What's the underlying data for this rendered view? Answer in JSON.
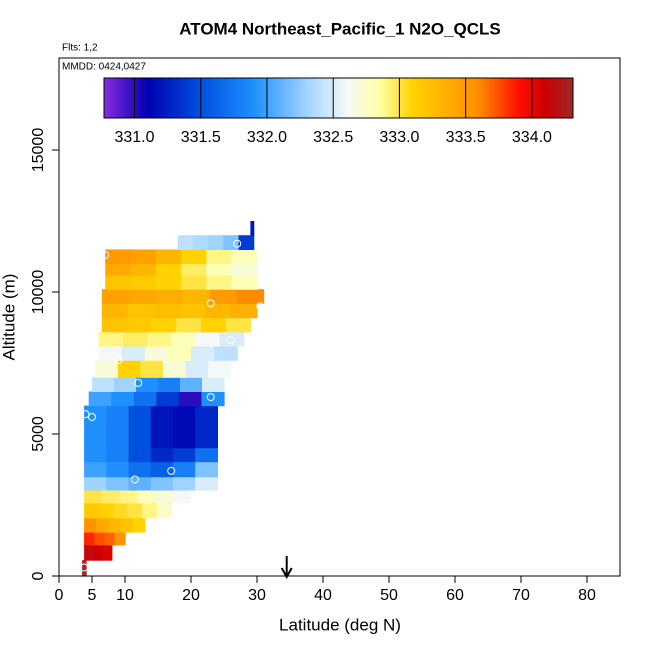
{
  "chart_data": {
    "type": "curtain",
    "title": "ATOM4 Northeast_Pacific_1 N2O_QCLS",
    "subtitle": "Flts: 1,2",
    "annotation": "MMDD: 0424,0427",
    "x_label": "Latitude (deg N)",
    "y_label": "Altitude (m)",
    "xlim": [
      0,
      85
    ],
    "xticks": [
      0,
      5,
      10,
      20,
      30,
      40,
      50,
      60,
      70,
      80
    ],
    "ylim": [
      0,
      18240
    ],
    "yticks": [
      0,
      5000,
      10000,
      15000
    ],
    "clim": [
      330.77,
      334.31
    ],
    "cticks": [
      {
        "value": 331,
        "label": "331.0"
      },
      {
        "value": 331.5,
        "label": "331.5"
      },
      {
        "value": 332,
        "label": "332.0"
      },
      {
        "value": 332.5,
        "label": "332.5"
      },
      {
        "value": 333,
        "label": "333.0"
      },
      {
        "value": 333.5,
        "label": "333.5"
      },
      {
        "value": 334,
        "label": "334.0"
      }
    ],
    "colormap": [
      {
        "value": 330.77,
        "color": "#8a2be2"
      },
      {
        "value": 331.1,
        "color": "#0000b0"
      },
      {
        "value": 331.5,
        "color": "#0050e0"
      },
      {
        "value": 331.9,
        "color": "#1e90ff"
      },
      {
        "value": 332.3,
        "color": "#a0d4ff"
      },
      {
        "value": 332.6,
        "color": "#f4f8f8"
      },
      {
        "value": 332.85,
        "color": "#ffffa8"
      },
      {
        "value": 333.1,
        "color": "#ffd200"
      },
      {
        "value": 333.6,
        "color": "#ff8c00"
      },
      {
        "value": 333.9,
        "color": "#ff1000"
      },
      {
        "value": 334.1,
        "color": "#cc0000"
      },
      {
        "value": 334.31,
        "color": "#a0282a"
      }
    ],
    "rows": [
      {
        "alt": [
          0,
          560
        ],
        "lat": [
          3.5,
          4.1
        ],
        "values": [
          334.3
        ]
      },
      {
        "alt": [
          560,
          1100
        ],
        "lat": [
          3.8,
          8
        ],
        "values": [
          334.15,
          334.1,
          334.05
        ]
      },
      {
        "alt": [
          1100,
          1550
        ],
        "lat": [
          3.8,
          10
        ],
        "values": [
          333.85,
          333.75,
          333.7,
          333.55
        ]
      },
      {
        "alt": [
          1550,
          2050
        ],
        "lat": [
          3.8,
          13
        ],
        "values": [
          333.55,
          333.4,
          333.3,
          333.2,
          333.1
        ]
      },
      {
        "alt": [
          2050,
          2580
        ],
        "lat": [
          3.8,
          17
        ],
        "values": [
          333.15,
          333.1,
          333.05,
          333.0,
          332.9,
          332.75
        ]
      },
      {
        "alt": [
          2580,
          3030
        ],
        "lat": [
          3.8,
          20
        ],
        "values": [
          333.0,
          332.95,
          332.9,
          332.8,
          332.7,
          332.6
        ]
      },
      {
        "alt": [
          3030,
          3500
        ],
        "lat": [
          3.8,
          24
        ],
        "values": [
          332.3,
          332.2,
          332.1,
          332.2,
          332.3,
          332.5
        ]
      },
      {
        "alt": [
          3500,
          4030
        ],
        "lat": [
          3.8,
          24
        ],
        "values": [
          332.0,
          331.9,
          331.7,
          331.6,
          331.8,
          332.2
        ]
      },
      {
        "alt": [
          4030,
          4520
        ],
        "lat": [
          3.8,
          24
        ],
        "values": [
          331.9,
          331.8,
          331.5,
          331.3,
          331.4,
          331.7
        ]
      },
      {
        "alt": [
          4520,
          6000
        ],
        "lat": [
          3.8,
          24
        ],
        "values": [
          331.9,
          331.8,
          331.5,
          331.2,
          331.15,
          331.3
        ]
      },
      {
        "alt": [
          6000,
          6500
        ],
        "lat": [
          4.5,
          25
        ],
        "values": [
          332.0,
          331.9,
          331.7,
          331.4,
          331.0,
          331.9
        ]
      },
      {
        "alt": [
          6500,
          7000
        ],
        "lat": [
          5,
          25
        ],
        "values": [
          332.4,
          332.3,
          331.9,
          331.8,
          332.1,
          332.5
        ]
      },
      {
        "alt": [
          7000,
          7600
        ],
        "lat": [
          5.5,
          26
        ],
        "values": [
          332.7,
          333.1,
          333.0,
          332.7,
          332.5,
          332.6
        ]
      },
      {
        "alt": [
          7600,
          8100
        ],
        "lat": [
          6,
          27
        ],
        "values": [
          332.6,
          332.5,
          332.7,
          332.8,
          332.5,
          332.4
        ]
      },
      {
        "alt": [
          8100,
          8600
        ],
        "lat": [
          6,
          28
        ],
        "values": [
          332.9,
          332.95,
          332.9,
          332.8,
          332.6,
          332.5
        ]
      },
      {
        "alt": [
          8600,
          9100
        ],
        "lat": [
          6.5,
          29
        ],
        "values": [
          333.2,
          333.15,
          333.1,
          333.0,
          333.1,
          333.0
        ]
      },
      {
        "alt": [
          9100,
          9600
        ],
        "lat": [
          6.5,
          30
        ],
        "values": [
          333.3,
          333.2,
          333.25,
          333.2,
          333.3,
          333.35
        ]
      },
      {
        "alt": [
          9600,
          10100
        ],
        "lat": [
          6.5,
          31
        ],
        "values": [
          333.45,
          333.4,
          333.35,
          333.3,
          333.5,
          333.6
        ]
      },
      {
        "alt": [
          10100,
          10600
        ],
        "lat": [
          7,
          30
        ],
        "values": [
          333.2,
          333.15,
          333.1,
          333.0,
          332.9,
          332.8
        ]
      },
      {
        "alt": [
          10600,
          11000
        ],
        "lat": [
          7,
          30
        ],
        "values": [
          333.4,
          333.3,
          333.1,
          332.95,
          332.8,
          332.7
        ]
      },
      {
        "alt": [
          11000,
          11500
        ],
        "lat": [
          7,
          30
        ],
        "values": [
          333.5,
          333.45,
          333.3,
          333.1,
          332.9,
          332.8
        ]
      },
      {
        "alt": [
          11500,
          12000
        ],
        "lat": [
          18,
          29.5
        ],
        "values": [
          332.4,
          332.35,
          332.3,
          332.2,
          331.4
        ]
      },
      {
        "alt": [
          12000,
          12500
        ],
        "lat": [
          29,
          29.5
        ],
        "values": [
          331.2
        ]
      }
    ],
    "points": {
      "x": [
        7,
        27,
        23,
        26,
        9,
        12,
        23,
        4,
        5,
        17,
        11.5,
        24,
        30.5,
        3.8
      ],
      "y": [
        11300,
        11700,
        9600,
        8300,
        7600,
        6800,
        6300,
        5700,
        5600,
        3700,
        3400,
        2600,
        9500,
        300
      ]
    },
    "marker_x": 34.5
  }
}
